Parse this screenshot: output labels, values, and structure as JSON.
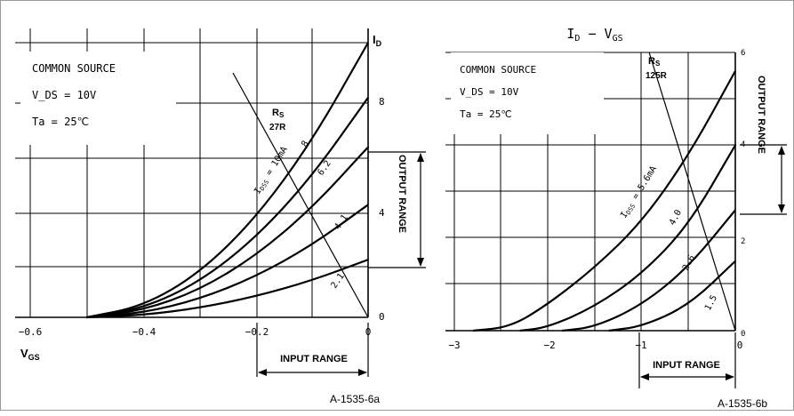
{
  "charts": [
    {
      "type": "line",
      "x_range": [
        -0.6,
        0
      ],
      "y_range": [
        0,
        10
      ],
      "x_tick_labels": [
        "−0.6",
        "−0.4",
        "−0.2",
        "0"
      ],
      "y_tick_labels": [
        "0",
        "4",
        "8"
      ],
      "y_axis_label": "I_D",
      "x_axis_label": "V_GS",
      "info": [
        "COMMON SOURCE",
        "V_DS = 10V",
        "Ta = 25℃"
      ],
      "rs_label_main": "R_S",
      "rs_label_value": "27R",
      "output_range_label": "OUTPUT RANGE",
      "input_range_label": "INPUT RANGE",
      "figure_id": "A-1535-6a",
      "curve_labels": [
        "I_DSS = 10mA",
        "8",
        "6.2",
        "4.1",
        "2.1"
      ],
      "series": [
        {
          "idss": 10.0,
          "points": [
            [
              -0.5,
              0
            ],
            [
              -0.4,
              0.4
            ],
            [
              -0.3,
              1.6
            ],
            [
              -0.2,
              3.6
            ],
            [
              -0.1,
              6.4
            ],
            [
              0,
              10.0
            ]
          ]
        },
        {
          "idss": 8.0,
          "points": [
            [
              -0.5,
              0
            ],
            [
              -0.4,
              0.32
            ],
            [
              -0.3,
              1.28
            ],
            [
              -0.2,
              2.88
            ],
            [
              -0.1,
              5.12
            ],
            [
              0,
              8.0
            ]
          ]
        },
        {
          "idss": 6.2,
          "points": [
            [
              -0.5,
              0
            ],
            [
              -0.4,
              0.25
            ],
            [
              -0.3,
              0.99
            ],
            [
              -0.2,
              2.23
            ],
            [
              -0.1,
              3.97
            ],
            [
              0,
              6.2
            ]
          ]
        },
        {
          "idss": 4.1,
          "points": [
            [
              -0.5,
              0
            ],
            [
              -0.4,
              0.16
            ],
            [
              -0.3,
              0.66
            ],
            [
              -0.2,
              1.48
            ],
            [
              -0.1,
              2.62
            ],
            [
              0,
              4.1
            ]
          ]
        },
        {
          "idss": 2.1,
          "points": [
            [
              -0.5,
              0
            ],
            [
              -0.4,
              0.08
            ],
            [
              -0.3,
              0.34
            ],
            [
              -0.2,
              0.76
            ],
            [
              -0.1,
              1.34
            ],
            [
              0,
              2.1
            ]
          ]
        }
      ],
      "load_line": [
        [
          -0.24,
          8.9
        ],
        [
          0,
          0
        ]
      ],
      "output_range": [
        2.0,
        6.2
      ],
      "input_range": [
        -0.2,
        0
      ]
    },
    {
      "type": "line",
      "title": "I_D − V_GS",
      "x_range": [
        -3,
        0
      ],
      "y_range": [
        0,
        6
      ],
      "x_tick_labels": [
        "−3",
        "−2",
        "−1",
        "0"
      ],
      "y_tick_labels": [
        "0",
        "2",
        "4",
        "6"
      ],
      "info": [
        "COMMON SOURCE",
        "V_DS = 10V",
        "Ta = 25℃"
      ],
      "rs_label_main": "R_S",
      "rs_label_value": "125R",
      "output_range_label": "OUTPUT RANGE",
      "input_range_label": "INPUT RANGE",
      "figure_id": "A-1535-6b",
      "curve_labels": [
        "I_DSS = 5.6mA",
        "4.0",
        "2.6",
        "1.5"
      ],
      "series": [
        {
          "idss": 5.6,
          "points": [
            [
              -2.8,
              0
            ],
            [
              -2.4,
              0.08
            ],
            [
              -2.0,
              0.57
            ],
            [
              -1.5,
              1.36
            ],
            [
              -1.0,
              2.34
            ],
            [
              -0.5,
              3.77
            ],
            [
              0,
              5.6
            ]
          ]
        },
        {
          "idss": 4.0,
          "points": [
            [
              -2.3,
              0
            ],
            [
              -2.0,
              0.07
            ],
            [
              -1.5,
              0.52
            ],
            [
              -1.0,
              1.22
            ],
            [
              -0.5,
              2.27
            ],
            [
              0,
              4.0
            ]
          ]
        },
        {
          "idss": 2.6,
          "points": [
            [
              -1.85,
              0
            ],
            [
              -1.5,
              0.08
            ],
            [
              -1.0,
              0.55
            ],
            [
              -0.5,
              1.37
            ],
            [
              0,
              2.6
            ]
          ]
        },
        {
          "idss": 1.5,
          "points": [
            [
              -1.35,
              0
            ],
            [
              -1.0,
              0.09
            ],
            [
              -0.5,
              0.54
            ],
            [
              0,
              1.5
            ]
          ]
        }
      ],
      "load_line": [
        [
          -0.92,
          6.0
        ],
        [
          0,
          0
        ]
      ],
      "output_range": [
        2.3,
        4.4
      ],
      "input_range": [
        -1.0,
        0
      ]
    }
  ]
}
